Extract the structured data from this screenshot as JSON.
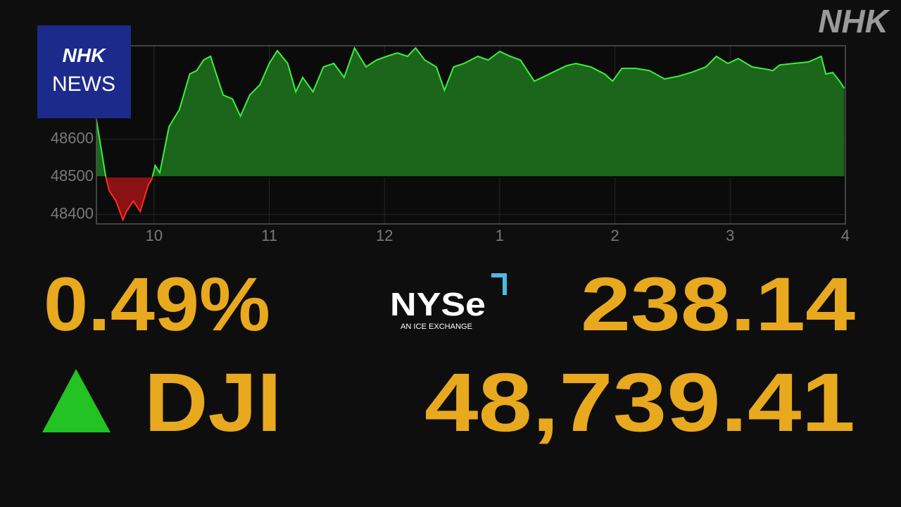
{
  "header": {
    "brand": "NHK",
    "badge": [
      "NHK",
      "NEWS"
    ]
  },
  "chart_data": {
    "type": "area",
    "x": [
      9.5,
      9.58,
      9.61,
      9.67,
      9.73,
      9.76,
      9.82,
      9.88,
      9.95,
      9.98,
      10.01,
      10.05,
      10.13,
      10.22,
      10.31,
      10.37,
      10.43,
      10.49,
      10.54,
      10.6,
      10.68,
      10.75,
      10.83,
      10.92,
      11.0,
      11.07,
      11.16,
      11.23,
      11.29,
      11.38,
      11.47,
      11.56,
      11.65,
      11.74,
      11.84,
      11.93,
      12.02,
      12.11,
      12.2,
      12.27,
      12.35,
      12.45,
      12.52,
      12.6,
      12.69,
      12.81,
      12.9,
      13.0,
      13.09,
      13.18,
      13.3,
      13.39,
      13.49,
      13.58,
      13.66,
      13.79,
      13.91,
      13.98,
      14.06,
      14.18,
      14.3,
      14.43,
      14.55,
      14.67,
      14.79,
      14.88,
      14.98,
      15.07,
      15.19,
      15.31,
      15.37,
      15.43,
      15.55,
      15.68,
      15.79,
      15.83,
      15.89,
      15.95,
      15.99
    ],
    "values": [
      48651,
      48502,
      48464,
      48436,
      48386,
      48408,
      48436,
      48408,
      48479,
      48493,
      48530,
      48511,
      48633,
      48679,
      48773,
      48782,
      48810,
      48820,
      48773,
      48717,
      48707,
      48661,
      48717,
      48745,
      48801,
      48835,
      48801,
      48726,
      48764,
      48726,
      48792,
      48801,
      48764,
      48842,
      48792,
      48810,
      48820,
      48829,
      48820,
      48842,
      48810,
      48792,
      48730,
      48792,
      48801,
      48820,
      48810,
      48833,
      48820,
      48810,
      48754,
      48767,
      48782,
      48795,
      48801,
      48792,
      48773,
      48754,
      48788,
      48788,
      48782,
      48760,
      48767,
      48778,
      48792,
      48820,
      48801,
      48814,
      48792,
      48786,
      48782,
      48797,
      48801,
      48805,
      48820,
      48773,
      48777,
      48754,
      48735
    ],
    "baseline": 48500,
    "line_color": "#3cf03c",
    "fill_color": "#1b661b",
    "below_line_color": "#ff2a2a",
    "below_fill_color": "#8a1212",
    "xlim": [
      9.5,
      16
    ],
    "xticks": [
      10,
      11,
      12,
      {
        "value": 13,
        "label": "1"
      },
      {
        "value": 14,
        "label": "2"
      },
      {
        "value": 15,
        "label": "3"
      },
      {
        "value": 16,
        "label": "4"
      }
    ],
    "ylim": [
      48375,
      48848
    ],
    "yticks": [
      48400,
      48500,
      48600
    ],
    "grid": true
  },
  "ticker": {
    "change": "0.49%",
    "exchange": "NYSe",
    "exchange_tagline": "AN ICE EXCHANGE",
    "point_change": "238.14",
    "index": "DJI",
    "price": "48,739.41"
  }
}
